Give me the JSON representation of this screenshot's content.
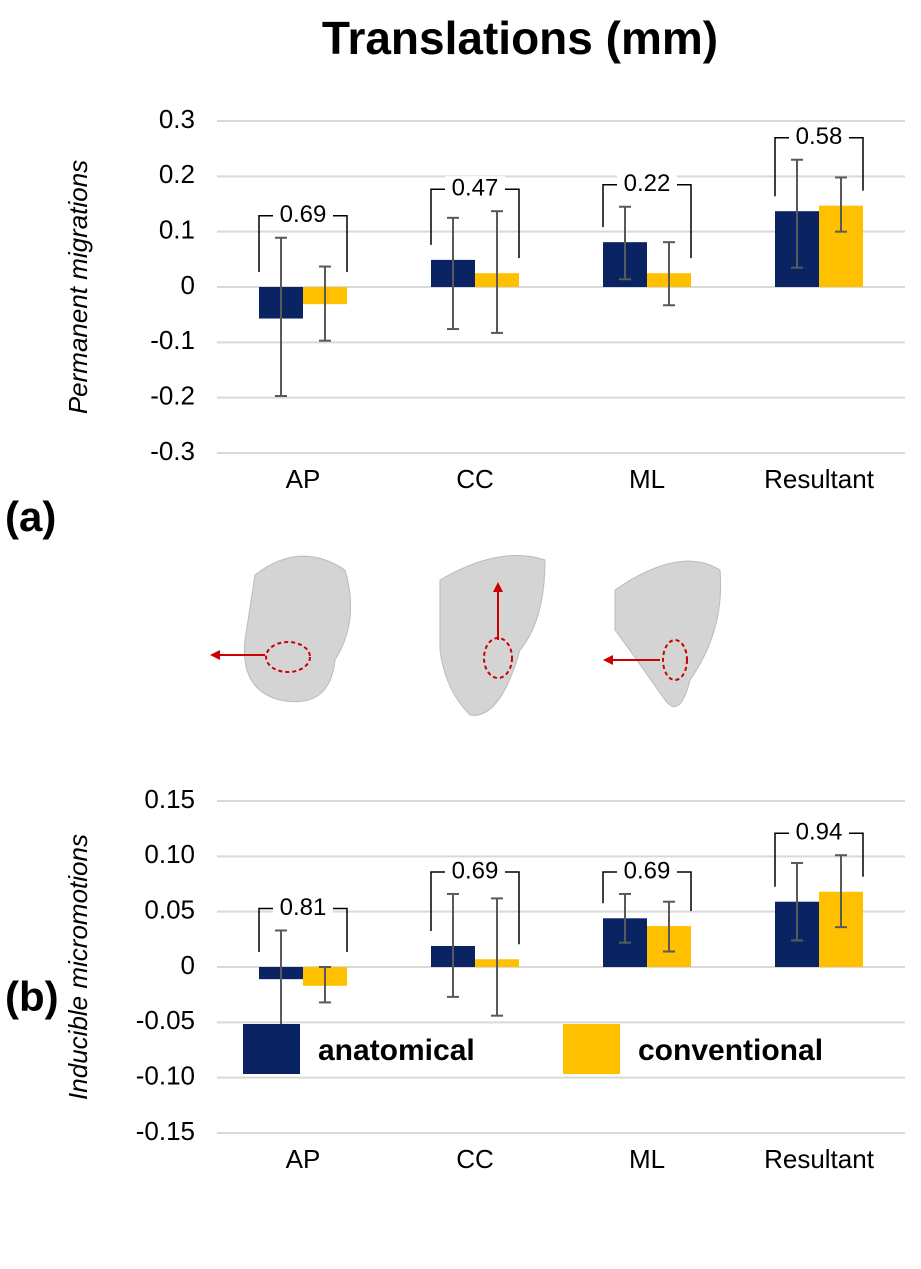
{
  "title": "Translations (mm)",
  "legend": "bottom",
  "chart_data": [
    {
      "type": "bar",
      "panel": "(a)",
      "ylabel": "Permanent migrations",
      "categories": [
        "AP",
        "CC",
        "ML",
        "Resultant"
      ],
      "p_values": [
        0.69,
        0.47,
        0.22,
        0.58
      ],
      "series": [
        {
          "name": "anatomical",
          "color": "#0a2463",
          "values": [
            -0.057,
            0.049,
            0.081,
            0.137
          ],
          "error_low": [
            -0.197,
            -0.076,
            0.014,
            0.035
          ],
          "error_high": [
            0.089,
            0.125,
            0.145,
            0.23
          ]
        },
        {
          "name": "conventional",
          "color": "#ffc000",
          "values": [
            -0.031,
            0.025,
            0.025,
            0.147
          ],
          "error_low": [
            -0.097,
            -0.083,
            -0.033,
            0.1
          ],
          "error_high": [
            0.037,
            0.137,
            0.081,
            0.198
          ]
        }
      ],
      "ylim": [
        -0.3,
        0.3
      ],
      "yticks": [
        0.3,
        0.2,
        0.1,
        0,
        -0.1,
        -0.2,
        -0.3
      ],
      "grid": true
    },
    {
      "type": "bar",
      "panel": "(b)",
      "ylabel": "Inducible micromotions",
      "categories": [
        "AP",
        "CC",
        "ML",
        "Resultant"
      ],
      "p_values": [
        0.81,
        0.69,
        0.69,
        0.94
      ],
      "series": [
        {
          "name": "anatomical",
          "color": "#0a2463",
          "values": [
            -0.011,
            0.019,
            0.044,
            0.059
          ],
          "error_low": [
            -0.053,
            -0.027,
            0.022,
            0.024
          ],
          "error_high": [
            0.033,
            0.066,
            0.066,
            0.094
          ]
        },
        {
          "name": "conventional",
          "color": "#ffc000",
          "values": [
            -0.017,
            0.007,
            0.037,
            0.068
          ],
          "error_low": [
            -0.032,
            -0.044,
            0.014,
            0.036
          ],
          "error_high": [
            0,
            0.062,
            0.059,
            0.101
          ]
        }
      ],
      "ylim": [
        -0.15,
        0.15
      ],
      "yticks": [
        0.15,
        {
          "value": 0.1,
          "label": "0.10"
        },
        0.05,
        0,
        -0.05,
        {
          "value": -0.1,
          "label": "-0.10"
        },
        -0.15
      ],
      "grid": true
    }
  ]
}
